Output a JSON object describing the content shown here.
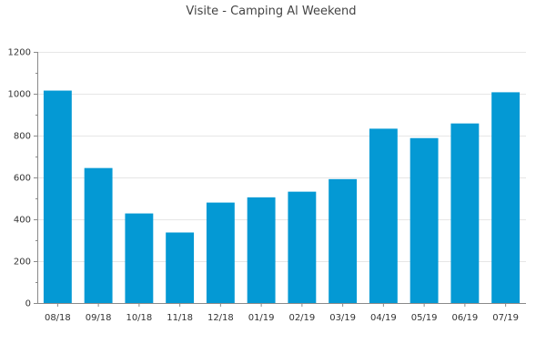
{
  "chart_data": {
    "type": "bar",
    "title": "Visite - Camping Al Weekend",
    "xlabel": "",
    "ylabel": "",
    "categories": [
      "08/18",
      "09/18",
      "10/18",
      "11/18",
      "12/18",
      "01/19",
      "02/19",
      "03/19",
      "04/19",
      "05/19",
      "06/19",
      "07/19"
    ],
    "values": [
      1015,
      645,
      428,
      337,
      480,
      505,
      532,
      592,
      833,
      788,
      858,
      1007
    ],
    "ylim": [
      0,
      1200
    ],
    "yticks": [
      0,
      200,
      400,
      600,
      800,
      1000,
      1200
    ],
    "grid": true,
    "legend": "none",
    "bar_color": "#0499d4"
  }
}
